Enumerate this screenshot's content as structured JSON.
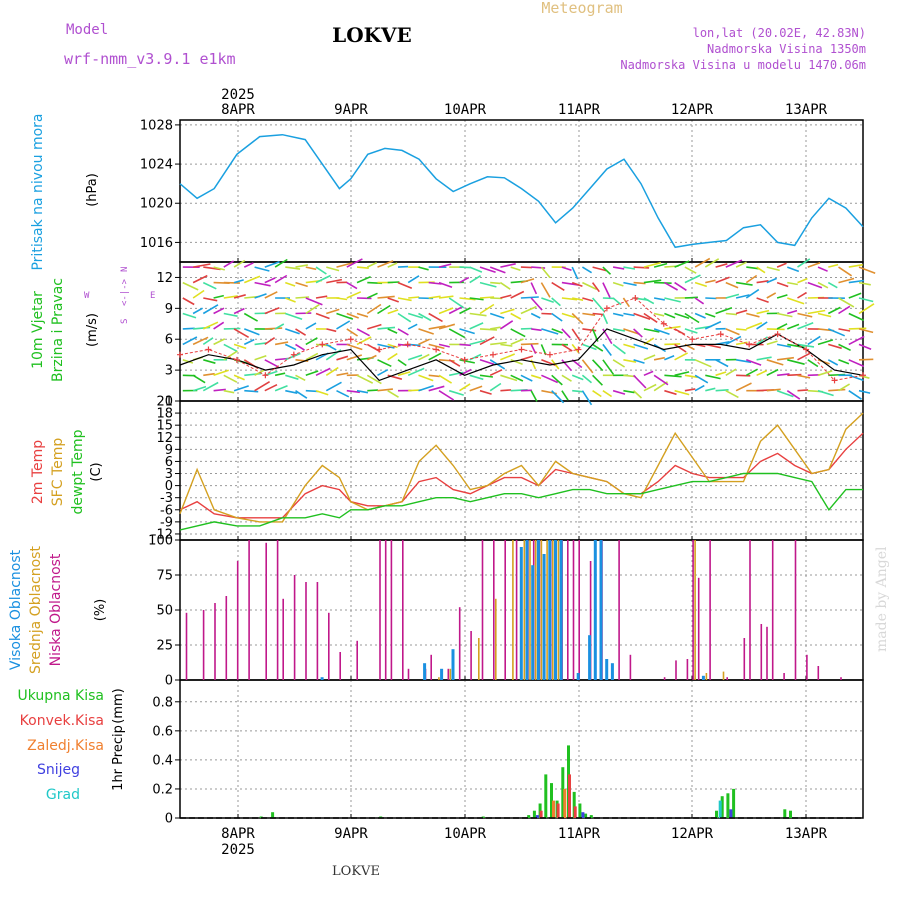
{
  "header": {
    "model_label": "Model",
    "model_name": "wrf-nmm_v3.9.1 e1km",
    "station": "LOKVE",
    "product": "Meteogram",
    "lonlat": "lon,lat (20.02E, 42.83N)",
    "elevation": "Nadmorska Visina 1350m",
    "elevation_model": "Nadmorska Visina u modelu 1470.06m",
    "footer": "LOKVE",
    "watermark": "made by Angel"
  },
  "time_axis": {
    "year": "2025",
    "days": [
      "8APR",
      "9APR",
      "10APR",
      "11APR",
      "12APR",
      "13APR"
    ]
  },
  "colors": {
    "pressure": "#1aa0e0",
    "temp2m": "#e84040",
    "sfc": "#d4a020",
    "dewpt": "#20c020",
    "wind_obs": "#000000",
    "gust": "#e84040",
    "high_cloud": "#1a90e0",
    "mid_cloud": "#d4a020",
    "low_cloud": "#c0188a",
    "rain_total": "#20c020",
    "rain_conv": "#e84040",
    "rain_frz": "#f08030",
    "snow": "#4040e0",
    "hail": "#20c8c8"
  },
  "chart_data": [
    {
      "type": "line",
      "panel": "pressure",
      "ylabel": "Pritisak na nivou mora",
      "unit": "(hPa)",
      "ylim": [
        1014,
        1028.5
      ],
      "yticks": [
        1016,
        1020,
        1024,
        1028
      ],
      "x": [
        0,
        0.3,
        0.6,
        1.0,
        1.4,
        1.8,
        2.2,
        2.5,
        2.8,
        3.0,
        3.3,
        3.6,
        3.9,
        4.2,
        4.5,
        4.8,
        5.1,
        5.4,
        5.7,
        6.0,
        6.3,
        6.6,
        6.9,
        7.2,
        7.5,
        7.8,
        8.1,
        8.4,
        8.7,
        9.0,
        9.3,
        9.6,
        9.9,
        10.2,
        10.5,
        10.8,
        11.1,
        11.4,
        11.7,
        12.0
      ],
      "series": [
        {
          "values": [
            1022.0,
            1020.5,
            1021.5,
            1025.0,
            1026.8,
            1027.0,
            1026.5,
            1024.0,
            1021.5,
            1022.5,
            1025.0,
            1025.6,
            1025.4,
            1024.5,
            1022.5,
            1021.2,
            1022.0,
            1022.7,
            1022.6,
            1021.5,
            1020.2,
            1018.0,
            1019.5,
            1021.5,
            1023.5,
            1024.5,
            1022.0,
            1018.5,
            1015.5,
            1015.8,
            1016.0,
            1016.2,
            1017.5,
            1017.8,
            1016.0,
            1015.7,
            1018.5,
            1020.5,
            1019.5,
            1017.6
          ]
        }
      ]
    },
    {
      "type": "line",
      "panel": "wind",
      "ylabel": "10m Vjetar Brzina i Pravac",
      "unit": "(m/s)",
      "compass": [
        "N",
        "W",
        "E",
        "S"
      ],
      "ylim": [
        0,
        13.5
      ],
      "yticks": [
        0,
        3,
        6,
        9,
        12
      ],
      "x": [
        0,
        0.5,
        1.0,
        1.5,
        2.0,
        2.5,
        3.0,
        3.5,
        4.0,
        4.5,
        5.0,
        5.5,
        6.0,
        6.5,
        7.0,
        7.5,
        8.0,
        8.5,
        9.0,
        9.5,
        10.0,
        10.5,
        11.0,
        11.5,
        12.0
      ],
      "series": [
        {
          "name": "speed",
          "values": [
            3.5,
            4.5,
            4.0,
            3.0,
            3.5,
            4.5,
            5.0,
            2.0,
            3.0,
            4.0,
            2.5,
            3.5,
            4.0,
            3.5,
            4.0,
            7.0,
            6.0,
            5.0,
            5.5,
            5.5,
            5.0,
            6.5,
            5.0,
            3.0,
            2.5
          ]
        },
        {
          "name": "gust",
          "values": [
            4.5,
            5.0,
            4.0,
            2.5,
            4.5,
            5.5,
            6.0,
            5.0,
            5.5,
            5.0,
            4.0,
            4.5,
            5.0,
            4.5,
            5.0,
            9.0,
            10.0,
            7.5,
            6.0,
            6.5,
            5.5,
            6.5,
            5.0,
            2.0,
            2.5
          ]
        }
      ]
    },
    {
      "type": "line",
      "panel": "temperature",
      "ylabel": [
        "2m Temp",
        "SFC Temp",
        "dewpt Temp"
      ],
      "unit": "(C)",
      "ylim": [
        -13.5,
        21
      ],
      "yticks": [
        -12,
        -9,
        -6,
        -3,
        0,
        3,
        6,
        9,
        12,
        15,
        18,
        21
      ],
      "x": [
        0,
        0.3,
        0.6,
        1.0,
        1.4,
        1.8,
        2.2,
        2.5,
        2.8,
        3.0,
        3.3,
        3.6,
        3.9,
        4.2,
        4.5,
        4.8,
        5.1,
        5.4,
        5.7,
        6.0,
        6.3,
        6.6,
        6.9,
        7.2,
        7.5,
        7.8,
        8.1,
        8.4,
        8.7,
        9.0,
        9.3,
        9.6,
        9.9,
        10.2,
        10.5,
        10.8,
        11.1,
        11.4,
        11.7,
        12.0
      ],
      "series": [
        {
          "name": "2m Temp",
          "values": [
            -6,
            -4,
            -7,
            -8,
            -8,
            -8,
            -2,
            0,
            -1,
            -4,
            -5,
            -5,
            -4,
            1,
            2,
            -1,
            -2,
            0,
            2,
            2,
            0,
            4,
            3,
            2,
            1,
            -2,
            -2,
            1,
            5,
            3,
            2,
            2,
            2,
            6,
            8,
            5,
            3,
            4,
            9,
            13
          ]
        },
        {
          "name": "SFC Temp",
          "values": [
            -7,
            4,
            -6,
            -8,
            -9,
            -9,
            0,
            5,
            2,
            -4,
            -6,
            -5,
            -4,
            6,
            10,
            5,
            -1,
            0,
            3,
            5,
            0,
            6,
            3,
            2,
            1,
            -2,
            -3,
            5,
            13,
            7,
            1,
            1,
            1,
            11,
            15,
            9,
            3,
            4,
            14,
            18
          ]
        },
        {
          "name": "dewpt Temp",
          "values": [
            -11,
            -10,
            -9,
            -10,
            -10,
            -8,
            -8,
            -7,
            -8,
            -6,
            -6,
            -5,
            -5,
            -4,
            -3,
            -3,
            -4,
            -3,
            -2,
            -2,
            -3,
            -2,
            -1,
            -1,
            -2,
            -2,
            -2,
            -1,
            0,
            1,
            1,
            2,
            3,
            3,
            3,
            2,
            1,
            -6,
            -1,
            -1
          ]
        }
      ]
    },
    {
      "type": "bar",
      "panel": "cloud",
      "ylabel": [
        "Visoka Oblacnost",
        "Srednja Oblacnost",
        "Niska Oblacnost"
      ],
      "unit": "(%)",
      "ylim": [
        0,
        100
      ],
      "yticks": [
        0,
        25,
        50,
        75,
        100
      ],
      "series": [
        {
          "name": "Niska Oblacnost",
          "x": [
            0.1,
            0.4,
            0.6,
            0.8,
            1.0,
            1.2,
            1.5,
            1.7,
            1.8,
            2.0,
            2.2,
            2.4,
            2.6,
            2.8,
            3.1,
            3.5,
            3.6,
            3.7,
            3.9,
            4.0,
            4.3,
            4.4,
            4.7,
            4.9,
            5.1,
            5.3,
            5.5,
            5.7,
            5.9,
            6.1,
            6.2,
            6.3,
            6.5,
            6.7,
            6.8,
            6.9,
            7.0,
            7.2,
            7.4,
            7.7,
            7.9,
            8.5,
            8.7,
            8.9,
            9.0,
            9.1,
            9.3,
            9.6,
            9.9,
            10.0,
            10.2,
            10.3,
            10.4,
            10.6,
            10.8,
            11.0,
            11.2,
            11.6
          ],
          "values": [
            48,
            50,
            55,
            60,
            85,
            100,
            98,
            100,
            58,
            75,
            70,
            70,
            48,
            20,
            28,
            100,
            100,
            100,
            100,
            8,
            8,
            18,
            8,
            52,
            35,
            100,
            100,
            100,
            100,
            100,
            100,
            100,
            100,
            100,
            100,
            100,
            100,
            85,
            100,
            100,
            18,
            2,
            14,
            15,
            100,
            73,
            100,
            2,
            30,
            100,
            40,
            38,
            100,
            5,
            100,
            18,
            10,
            2
          ]
        },
        {
          "name": "Srednja Oblacnost",
          "x": [
            4.5,
            4.7,
            5.2,
            5.5,
            5.8,
            6.0,
            6.1,
            6.2,
            6.3,
            6.4,
            6.5,
            6.6,
            9.0,
            9.2,
            9.5
          ],
          "values": [
            2,
            8,
            30,
            58,
            100,
            100,
            100,
            100,
            100,
            100,
            100,
            100,
            100,
            5,
            6
          ]
        },
        {
          "name": "Visoka Oblacnost",
          "x": [
            2.4,
            4.2,
            4.5,
            4.7,
            5.9,
            6.0,
            6.1,
            6.2,
            6.3,
            6.4,
            6.5,
            6.6,
            6.9,
            7.1,
            7.2,
            7.3,
            7.4,
            7.5,
            9.1
          ],
          "values": [
            2,
            12,
            8,
            22,
            95,
            100,
            82,
            100,
            90,
            100,
            100,
            100,
            5,
            32,
            100,
            100,
            15,
            12,
            3
          ]
        }
      ]
    },
    {
      "type": "bar",
      "panel": "precip",
      "ylabel": "1hr Precip",
      "unit": "(mm)",
      "legend": [
        "Ukupna Kisa",
        "Konvek.Kisa",
        "Zaledj.Kisa",
        "Snijeg",
        "Grad"
      ],
      "ylim": [
        0,
        0.95
      ],
      "yticks": [
        0,
        0.2,
        0.4,
        0.6,
        0.8
      ],
      "series": [
        {
          "name": "Ukupna Kisa",
          "x": [
            1.4,
            1.6,
            3.5,
            5.3,
            6.1,
            6.2,
            6.3,
            6.4,
            6.5,
            6.6,
            6.7,
            6.8,
            6.9,
            7.0,
            7.1,
            7.2,
            9.4,
            9.5,
            9.6,
            9.7,
            10.6,
            10.7
          ],
          "values": [
            0.01,
            0.04,
            0.01,
            0.01,
            0.02,
            0.05,
            0.1,
            0.3,
            0.24,
            0.12,
            0.35,
            0.5,
            0.18,
            0.1,
            0.03,
            0.02,
            0.05,
            0.15,
            0.17,
            0.2,
            0.06,
            0.05
          ]
        },
        {
          "name": "Konvek.Kisa",
          "x": [
            6.3,
            6.6,
            6.8,
            6.9
          ],
          "values": [
            0.05,
            0.1,
            0.3,
            0.08
          ]
        },
        {
          "name": "Zaledj.Kisa",
          "x": [
            6.5,
            6.7
          ],
          "values": [
            0.12,
            0.2
          ]
        },
        {
          "name": "Snijeg",
          "x": [
            6.2,
            7.0,
            9.6
          ],
          "values": [
            0.02,
            0.04,
            0.06
          ]
        },
        {
          "name": "Grad",
          "x": [
            9.5
          ],
          "values": [
            0.12
          ]
        }
      ]
    }
  ]
}
